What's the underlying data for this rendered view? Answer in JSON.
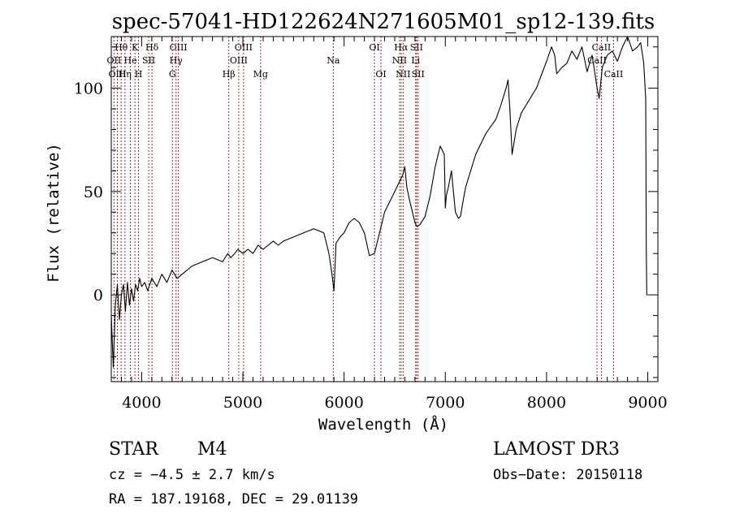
{
  "chart_data": {
    "type": "line",
    "title": "spec-57041-HD122624N271605M01_sp12-139.fits",
    "xlabel": "Wavelength (Å)",
    "ylabel": "Flux (relative)",
    "xlim": [
      3700,
      9100
    ],
    "ylim": [
      -42,
      125
    ],
    "x_ticks": [
      4000,
      5000,
      6000,
      7000,
      8000,
      9000
    ],
    "x_tick_labels": [
      "4000",
      "5000",
      "6000",
      "7000",
      "8000",
      "9000"
    ],
    "y_ticks": [
      0,
      50,
      100
    ],
    "y_tick_labels": [
      "0",
      "50",
      "100"
    ],
    "grid": false,
    "series": [
      {
        "name": "spectrum",
        "color": "#000000",
        "x": [
          3700,
          3720,
          3740,
          3760,
          3780,
          3800,
          3820,
          3840,
          3860,
          3880,
          3900,
          3920,
          3940,
          3960,
          3980,
          4000,
          4030,
          4060,
          4100,
          4150,
          4200,
          4250,
          4300,
          4350,
          4400,
          4450,
          4500,
          4600,
          4700,
          4800,
          4850,
          4880,
          4920,
          4950,
          5000,
          5050,
          5100,
          5150,
          5200,
          5250,
          5300,
          5350,
          5400,
          5500,
          5600,
          5700,
          5800,
          5850,
          5880,
          5900,
          5920,
          5960,
          6000,
          6050,
          6100,
          6150,
          6200,
          6250,
          6300,
          6350,
          6400,
          6450,
          6500,
          6550,
          6580,
          6600,
          6620,
          6650,
          6700,
          6720,
          6750,
          6800,
          6850,
          6900,
          6950,
          6990,
          7000,
          7010,
          7030,
          7060,
          7100,
          7130,
          7150,
          7170,
          7200,
          7300,
          7400,
          7500,
          7550,
          7600,
          7620,
          7640,
          7660,
          7700,
          7750,
          7800,
          7900,
          8000,
          8050,
          8080,
          8100,
          8150,
          8200,
          8250,
          8300,
          8350,
          8400,
          8450,
          8500,
          8520,
          8550,
          8600,
          8650,
          8700,
          8750,
          8800,
          8850,
          8900,
          8930,
          8960,
          8980,
          8985,
          8990,
          9000
        ],
        "y": [
          -10,
          -35,
          -5,
          5,
          -12,
          0,
          5,
          -8,
          6,
          -5,
          3,
          -3,
          5,
          2,
          8,
          4,
          6,
          2,
          8,
          4,
          10,
          6,
          12,
          8,
          10,
          12,
          14,
          16,
          18,
          16,
          20,
          18,
          20,
          22,
          20,
          22,
          20,
          24,
          22,
          24,
          26,
          24,
          26,
          28,
          30,
          32,
          30,
          20,
          10,
          2,
          25,
          28,
          30,
          35,
          37,
          35,
          30,
          19,
          20,
          30,
          40,
          45,
          50,
          55,
          58,
          62,
          52,
          45,
          35,
          33,
          34,
          38,
          48,
          62,
          72,
          68,
          42,
          48,
          52,
          60,
          40,
          37,
          38,
          44,
          52,
          68,
          78,
          85,
          92,
          100,
          104,
          88,
          68,
          80,
          88,
          92,
          100,
          113,
          120,
          116,
          107,
          110,
          112,
          118,
          114,
          120,
          108,
          116,
          100,
          95,
          110,
          116,
          118,
          113,
          120,
          125,
          118,
          120,
          122,
          112,
          95,
          22,
          0,
          0
        ]
      }
    ],
    "spectral_lines": [
      {
        "label": "Hθ",
        "x": 3798,
        "row": 1
      },
      {
        "label": "OII",
        "x": 3727,
        "row": 2
      },
      {
        "label": "OIII",
        "x": 3760,
        "row": 3
      },
      {
        "label": "K",
        "x": 3934,
        "row": 1
      },
      {
        "label": "He",
        "x": 3889,
        "row": 2
      },
      {
        "label": "Hη",
        "x": 3835,
        "row": 3
      },
      {
        "label": "SII",
        "x": 4070,
        "row": 2
      },
      {
        "label": "H",
        "x": 3969,
        "row": 3
      },
      {
        "label": "Hδ",
        "x": 4102,
        "row": 1
      },
      {
        "label": "OIII",
        "x": 4363,
        "row": 1
      },
      {
        "label": "Hγ",
        "x": 4340,
        "row": 2
      },
      {
        "label": "G",
        "x": 4304,
        "row": 3
      },
      {
        "label": "OIII",
        "x": 5007,
        "row": 1
      },
      {
        "label": "OIII",
        "x": 4959,
        "row": 2
      },
      {
        "label": "Hβ",
        "x": 4861,
        "row": 3
      },
      {
        "label": "Mg",
        "x": 5175,
        "row": 3
      },
      {
        "label": "Na",
        "x": 5893,
        "row": 2
      },
      {
        "label": "OI",
        "x": 6300,
        "row": 1
      },
      {
        "label": "OI",
        "x": 6364,
        "row": 3
      },
      {
        "label": "Hα",
        "x": 6563,
        "row": 1
      },
      {
        "label": "NII",
        "x": 6548,
        "row": 2
      },
      {
        "label": "NII",
        "x": 6583,
        "row": 3
      },
      {
        "label": "SII",
        "x": 6716,
        "row": 1
      },
      {
        "label": "Li",
        "x": 6707,
        "row": 2
      },
      {
        "label": "SII",
        "x": 6731,
        "row": 3
      },
      {
        "label": "CaII",
        "x": 8542,
        "row": 1
      },
      {
        "label": "CaII",
        "x": 8498,
        "row": 2
      },
      {
        "label": "CaII",
        "x": 8662,
        "row": 3
      }
    ]
  },
  "info": {
    "object_class": "STAR",
    "subclass": "M4",
    "survey": "LAMOST DR3",
    "cz": "cz = −4.5 ± 2.7 km/s",
    "obs_date": "Obs−Date: 20150118",
    "coords": "RA = 187.19168, DEC =  29.01139"
  }
}
